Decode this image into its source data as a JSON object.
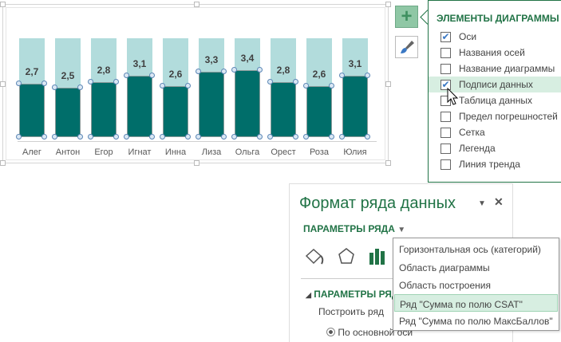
{
  "chart_data": {
    "type": "bar",
    "categories": [
      "Алег",
      "Антон",
      "Егор",
      "Игнат",
      "Инна",
      "Лиза",
      "Ольга",
      "Орест",
      "Роза",
      "Юлия"
    ],
    "series": [
      {
        "name": "Сумма по полю CSAT",
        "values": [
          2.7,
          2.5,
          2.8,
          3.1,
          2.6,
          3.3,
          3.4,
          2.8,
          2.6,
          3.1
        ]
      },
      {
        "name": "Сумма по полю МаксБаллов",
        "values": [
          5,
          5,
          5,
          5,
          5,
          5,
          5,
          5,
          5,
          5
        ]
      }
    ],
    "data_labels": [
      "2,7",
      "2,5",
      "2,8",
      "3,1",
      "2,6",
      "3,3",
      "3,4",
      "2,8",
      "2,6",
      "3,1"
    ],
    "ylim": [
      0,
      5
    ],
    "colors": {
      "csat": "#006e6a",
      "max": "#b2dcdc"
    }
  },
  "chart_elements": {
    "title": "ЭЛЕМЕНТЫ ДИАГРАММЫ",
    "items": [
      {
        "label": "Оси",
        "checked": true
      },
      {
        "label": "Названия осей",
        "checked": false
      },
      {
        "label": "Название диаграммы",
        "checked": false
      },
      {
        "label": "Подписи данных",
        "checked": true
      },
      {
        "label": "Таблица данных",
        "checked": false
      },
      {
        "label": "Предел погрешностей",
        "checked": false
      },
      {
        "label": "Сетка",
        "checked": false
      },
      {
        "label": "Легенда",
        "checked": false
      },
      {
        "label": "Линия тренда",
        "checked": false
      }
    ]
  },
  "format_pane": {
    "title": "Формат ряда данных",
    "options_label": "ПАРАМЕТРЫ РЯДА",
    "section": "ПАРАМЕТРЫ РЯДА",
    "plot_series": "Построить ряд",
    "primary_axis": "По основной оси"
  },
  "dropdown": {
    "items": [
      "Горизонтальная ось (категорий)",
      "Область диаграммы",
      "Область построения",
      "Ряд \"Сумма по полю CSAT\"",
      "Ряд \"Сумма по полю МаксБаллов\""
    ],
    "selected": 3
  }
}
